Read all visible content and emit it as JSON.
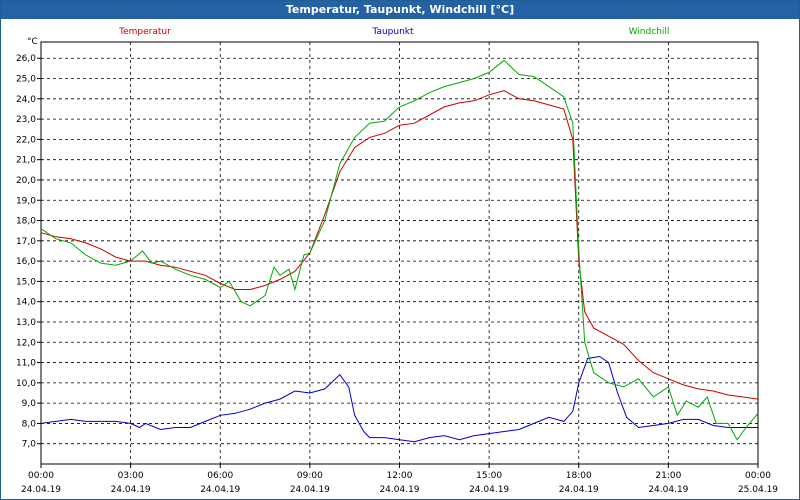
{
  "window": {
    "title": "Temperatur, Taupunkt, Windchill [°C]"
  },
  "chart_data": {
    "type": "line",
    "title": "Temperatur, Taupunkt, Windchill [°C]",
    "ylabel": "°C",
    "ylim": [
      6.0,
      26.8
    ],
    "yticks": [
      "26,0",
      "25,0",
      "24,0",
      "23,0",
      "22,0",
      "21,0",
      "20,0",
      "19,0",
      "18,0",
      "17,0",
      "16,0",
      "15,0",
      "14,0",
      "13,0",
      "12,0",
      "11,0",
      "10,0",
      "9,0",
      "8,0",
      "7,0"
    ],
    "xlim": [
      0,
      24
    ],
    "xticks": [
      {
        "time": "00:00",
        "date": "24.04.19"
      },
      {
        "time": "03:00",
        "date": "24.04.19"
      },
      {
        "time": "06:00",
        "date": "24.04.19"
      },
      {
        "time": "09:00",
        "date": "24.04.19"
      },
      {
        "time": "12:00",
        "date": "24.04.19"
      },
      {
        "time": "15:00",
        "date": "24.04.19"
      },
      {
        "time": "18:00",
        "date": "24.04.19"
      },
      {
        "time": "21:00",
        "date": "24.04.19"
      },
      {
        "time": "00:00",
        "date": "25.04.19"
      }
    ],
    "grid": true,
    "legend_position": "top",
    "series": [
      {
        "name": "Temperatur",
        "color": "#cc0000",
        "points": [
          [
            0,
            17.4
          ],
          [
            0.5,
            17.2
          ],
          [
            1,
            17.1
          ],
          [
            1.5,
            16.9
          ],
          [
            2,
            16.6
          ],
          [
            2.5,
            16.2
          ],
          [
            3,
            16.0
          ],
          [
            3.5,
            16.0
          ],
          [
            4,
            15.8
          ],
          [
            4.5,
            15.7
          ],
          [
            5,
            15.5
          ],
          [
            5.5,
            15.3
          ],
          [
            6,
            14.9
          ],
          [
            6.5,
            14.6
          ],
          [
            7,
            14.6
          ],
          [
            7.5,
            14.8
          ],
          [
            8,
            15.1
          ],
          [
            8.5,
            15.5
          ],
          [
            9,
            16.4
          ],
          [
            9.5,
            18.3
          ],
          [
            10,
            20.4
          ],
          [
            10.5,
            21.6
          ],
          [
            11,
            22.1
          ],
          [
            11.5,
            22.3
          ],
          [
            12,
            22.7
          ],
          [
            12.5,
            22.8
          ],
          [
            13,
            23.2
          ],
          [
            13.5,
            23.6
          ],
          [
            14,
            23.8
          ],
          [
            14.5,
            23.9
          ],
          [
            15,
            24.2
          ],
          [
            15.5,
            24.4
          ],
          [
            16,
            24.0
          ],
          [
            16.5,
            23.9
          ],
          [
            17,
            23.7
          ],
          [
            17.5,
            23.5
          ],
          [
            17.8,
            22.0
          ],
          [
            18.0,
            16.0
          ],
          [
            18.2,
            13.5
          ],
          [
            18.5,
            12.7
          ],
          [
            19,
            12.3
          ],
          [
            19.5,
            11.9
          ],
          [
            20,
            11.1
          ],
          [
            20.5,
            10.5
          ],
          [
            21,
            10.2
          ],
          [
            21.5,
            9.9
          ],
          [
            22,
            9.7
          ],
          [
            22.5,
            9.6
          ],
          [
            23,
            9.4
          ],
          [
            23.5,
            9.3
          ],
          [
            24,
            9.2
          ]
        ]
      },
      {
        "name": "Taupunkt",
        "color": "#0000cc",
        "points": [
          [
            0,
            8.0
          ],
          [
            0.5,
            8.1
          ],
          [
            1,
            8.2
          ],
          [
            1.5,
            8.1
          ],
          [
            2,
            8.1
          ],
          [
            2.5,
            8.1
          ],
          [
            3,
            8.0
          ],
          [
            3.3,
            7.8
          ],
          [
            3.5,
            8.0
          ],
          [
            4,
            7.7
          ],
          [
            4.5,
            7.8
          ],
          [
            5,
            7.8
          ],
          [
            5.5,
            8.1
          ],
          [
            6,
            8.4
          ],
          [
            6.5,
            8.5
          ],
          [
            7,
            8.7
          ],
          [
            7.5,
            9.0
          ],
          [
            8,
            9.2
          ],
          [
            8.5,
            9.6
          ],
          [
            9,
            9.5
          ],
          [
            9.5,
            9.7
          ],
          [
            10,
            10.4
          ],
          [
            10.3,
            9.8
          ],
          [
            10.5,
            8.4
          ],
          [
            10.8,
            7.6
          ],
          [
            11,
            7.3
          ],
          [
            11.5,
            7.3
          ],
          [
            12,
            7.2
          ],
          [
            12.5,
            7.1
          ],
          [
            13,
            7.3
          ],
          [
            13.5,
            7.4
          ],
          [
            14,
            7.2
          ],
          [
            14.5,
            7.4
          ],
          [
            15,
            7.5
          ],
          [
            15.5,
            7.6
          ],
          [
            16,
            7.7
          ],
          [
            16.5,
            8.0
          ],
          [
            17,
            8.3
          ],
          [
            17.5,
            8.1
          ],
          [
            17.8,
            8.6
          ],
          [
            18.0,
            10.0
          ],
          [
            18.3,
            11.2
          ],
          [
            18.7,
            11.3
          ],
          [
            19,
            11.0
          ],
          [
            19.3,
            9.5
          ],
          [
            19.6,
            8.3
          ],
          [
            20,
            7.8
          ],
          [
            20.5,
            7.9
          ],
          [
            21,
            8.0
          ],
          [
            21.5,
            8.2
          ],
          [
            22,
            8.2
          ],
          [
            22.5,
            7.9
          ],
          [
            23,
            7.8
          ],
          [
            23.5,
            7.8
          ],
          [
            24,
            7.8
          ]
        ]
      },
      {
        "name": "Windchill",
        "color": "#00aa00",
        "points": [
          [
            0,
            17.6
          ],
          [
            0.5,
            17.1
          ],
          [
            1,
            16.9
          ],
          [
            1.5,
            16.3
          ],
          [
            2,
            15.9
          ],
          [
            2.5,
            15.8
          ],
          [
            3,
            16.0
          ],
          [
            3.4,
            16.5
          ],
          [
            3.7,
            15.9
          ],
          [
            4,
            16.0
          ],
          [
            4.5,
            15.6
          ],
          [
            5,
            15.3
          ],
          [
            5.5,
            15.1
          ],
          [
            6,
            14.7
          ],
          [
            6.3,
            15.0
          ],
          [
            6.7,
            14.0
          ],
          [
            7,
            13.8
          ],
          [
            7.5,
            14.3
          ],
          [
            7.8,
            15.7
          ],
          [
            8.0,
            15.3
          ],
          [
            8.3,
            15.6
          ],
          [
            8.5,
            14.6
          ],
          [
            8.8,
            16.3
          ],
          [
            9,
            16.4
          ],
          [
            9.5,
            18.0
          ],
          [
            10,
            20.8
          ],
          [
            10.5,
            22.1
          ],
          [
            11,
            22.8
          ],
          [
            11.5,
            22.9
          ],
          [
            12,
            23.6
          ],
          [
            12.5,
            23.9
          ],
          [
            13,
            24.3
          ],
          [
            13.5,
            24.6
          ],
          [
            14,
            24.8
          ],
          [
            14.5,
            25.0
          ],
          [
            15,
            25.3
          ],
          [
            15.5,
            25.9
          ],
          [
            16,
            25.2
          ],
          [
            16.5,
            25.1
          ],
          [
            17,
            24.6
          ],
          [
            17.5,
            24.1
          ],
          [
            17.8,
            22.8
          ],
          [
            18.0,
            16.5
          ],
          [
            18.2,
            12.0
          ],
          [
            18.5,
            10.5
          ],
          [
            19,
            10.0
          ],
          [
            19.5,
            9.8
          ],
          [
            20,
            10.2
          ],
          [
            20.5,
            9.3
          ],
          [
            21,
            9.8
          ],
          [
            21.3,
            8.4
          ],
          [
            21.6,
            9.1
          ],
          [
            22,
            8.8
          ],
          [
            22.3,
            9.3
          ],
          [
            22.6,
            8.0
          ],
          [
            23,
            8.0
          ],
          [
            23.3,
            7.2
          ],
          [
            23.6,
            7.8
          ],
          [
            24,
            8.5
          ]
        ]
      }
    ]
  }
}
